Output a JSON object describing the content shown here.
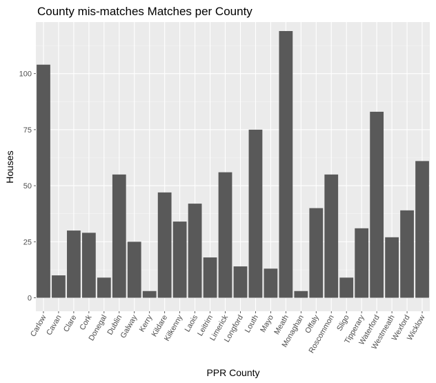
{
  "chart_data": {
    "type": "bar",
    "title": "County mis-matches Matches per County",
    "xlabel": "PPR County",
    "ylabel": "Houses",
    "ylim": [
      -6,
      123
    ],
    "yticks": [
      0,
      25,
      50,
      75,
      100
    ],
    "grid": true,
    "legend": "none",
    "colors": {
      "panel_background": "#ebebeb",
      "grid_major": "#ffffff",
      "grid_minor": "#f5f5f5",
      "bar_fill": "#595959",
      "tick_label": "#4d4d4d",
      "text": "#000000"
    },
    "categories": [
      "Carlow",
      "Cavan",
      "Clare",
      "Cork",
      "Donegal",
      "Dublin",
      "Galway",
      "Kerry",
      "Kildare",
      "Kilkenny",
      "Laois",
      "Leitrim",
      "Limerick",
      "Longford",
      "Louth",
      "Mayo",
      "Meath",
      "Monaghan",
      "Offaly",
      "Roscommon",
      "Sligo",
      "Tipperary",
      "Waterford",
      "Westmeath",
      "Wexford",
      "Wicklow"
    ],
    "values": [
      104,
      10,
      30,
      29,
      9,
      55,
      25,
      3,
      47,
      34,
      42,
      18,
      56,
      14,
      75,
      13,
      119,
      3,
      40,
      55,
      9,
      31,
      83,
      27,
      39,
      61
    ]
  }
}
